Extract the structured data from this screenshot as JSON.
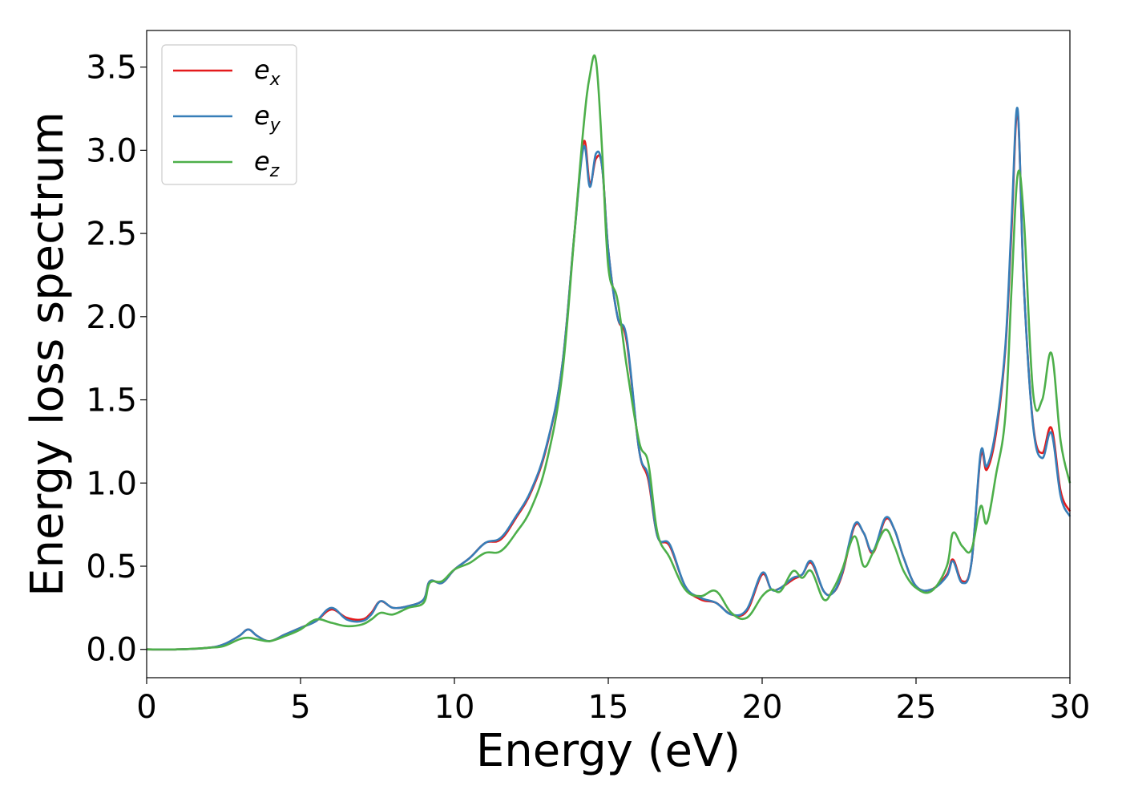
{
  "chart_data": {
    "type": "line",
    "xlabel": "Energy (eV)",
    "ylabel": "Energy loss spectrum",
    "xlim": [
      0,
      30
    ],
    "ylim": [
      -0.17,
      3.72
    ],
    "xticks": [
      0,
      5,
      10,
      15,
      20,
      25,
      30
    ],
    "xtick_labels": [
      "0",
      "5",
      "10",
      "15",
      "20",
      "25",
      "30"
    ],
    "yticks": [
      0.0,
      0.5,
      1.0,
      1.5,
      2.0,
      2.5,
      3.0,
      3.5
    ],
    "ytick_labels": [
      "0.0",
      "0.5",
      "1.0",
      "1.5",
      "2.0",
      "2.5",
      "3.0",
      "3.5"
    ],
    "grid": false,
    "legend_position": "top-left",
    "x": [
      0,
      1,
      2,
      2.5,
      3,
      3.3,
      3.6,
      4,
      4.5,
      5,
      5.5,
      6,
      6.5,
      7,
      7.3,
      7.6,
      8,
      8.5,
      9,
      9.2,
      9.6,
      10,
      10.5,
      11,
      11.5,
      12,
      12.5,
      13,
      13.5,
      13.9,
      14.2,
      14.4,
      14.6,
      14.8,
      15,
      15.3,
      15.6,
      16,
      16.3,
      16.6,
      17,
      17.5,
      18,
      18.5,
      19,
      19.5,
      20,
      20.3,
      20.6,
      21,
      21.3,
      21.6,
      22,
      22.3,
      22.6,
      23,
      23.3,
      23.6,
      24,
      24.3,
      24.6,
      25,
      25.5,
      26,
      26.2,
      26.5,
      26.8,
      27.1,
      27.3,
      27.6,
      27.9,
      28.1,
      28.3,
      28.5,
      28.8,
      29.1,
      29.4,
      29.7,
      30
    ],
    "series": [
      {
        "name": "x",
        "color": "#e41a1c",
        "values": [
          0,
          0,
          0.01,
          0.03,
          0.08,
          0.12,
          0.08,
          0.05,
          0.09,
          0.13,
          0.17,
          0.24,
          0.19,
          0.18,
          0.22,
          0.29,
          0.25,
          0.26,
          0.3,
          0.41,
          0.4,
          0.48,
          0.55,
          0.64,
          0.66,
          0.79,
          0.95,
          1.22,
          1.7,
          2.5,
          3.05,
          2.8,
          2.95,
          2.9,
          2.4,
          2.0,
          1.85,
          1.2,
          1.02,
          0.68,
          0.62,
          0.38,
          0.3,
          0.28,
          0.21,
          0.23,
          0.45,
          0.36,
          0.37,
          0.42,
          0.45,
          0.52,
          0.35,
          0.34,
          0.45,
          0.74,
          0.7,
          0.58,
          0.78,
          0.72,
          0.55,
          0.38,
          0.36,
          0.45,
          0.54,
          0.41,
          0.52,
          1.16,
          1.08,
          1.3,
          1.8,
          2.5,
          3.23,
          2.2,
          1.36,
          1.18,
          1.33,
          0.95,
          0.83
        ]
      },
      {
        "name": "y",
        "color": "#377eb8",
        "values": [
          0,
          0,
          0.01,
          0.03,
          0.08,
          0.12,
          0.08,
          0.05,
          0.09,
          0.13,
          0.17,
          0.25,
          0.18,
          0.17,
          0.21,
          0.29,
          0.25,
          0.26,
          0.3,
          0.41,
          0.4,
          0.48,
          0.55,
          0.64,
          0.67,
          0.8,
          0.96,
          1.23,
          1.7,
          2.5,
          3.02,
          2.78,
          2.98,
          2.9,
          2.4,
          2.0,
          1.87,
          1.2,
          1.04,
          0.68,
          0.63,
          0.38,
          0.31,
          0.28,
          0.21,
          0.24,
          0.46,
          0.36,
          0.37,
          0.43,
          0.45,
          0.53,
          0.35,
          0.34,
          0.46,
          0.75,
          0.7,
          0.59,
          0.79,
          0.72,
          0.55,
          0.38,
          0.36,
          0.44,
          0.53,
          0.4,
          0.52,
          1.18,
          1.1,
          1.33,
          1.82,
          2.55,
          3.25,
          2.2,
          1.35,
          1.15,
          1.3,
          0.92,
          0.8
        ]
      },
      {
        "name": "z",
        "color": "#4daf4a",
        "values": [
          0,
          0,
          0.01,
          0.02,
          0.06,
          0.07,
          0.06,
          0.05,
          0.08,
          0.12,
          0.18,
          0.16,
          0.14,
          0.15,
          0.18,
          0.22,
          0.21,
          0.25,
          0.28,
          0.4,
          0.41,
          0.48,
          0.52,
          0.58,
          0.59,
          0.7,
          0.85,
          1.13,
          1.65,
          2.5,
          3.15,
          3.45,
          3.54,
          3.0,
          2.3,
          2.1,
          1.7,
          1.25,
          1.12,
          0.7,
          0.55,
          0.36,
          0.32,
          0.35,
          0.22,
          0.19,
          0.32,
          0.36,
          0.35,
          0.47,
          0.43,
          0.47,
          0.3,
          0.36,
          0.48,
          0.68,
          0.5,
          0.58,
          0.72,
          0.62,
          0.47,
          0.37,
          0.35,
          0.5,
          0.7,
          0.62,
          0.6,
          0.86,
          0.76,
          1.05,
          1.4,
          2.15,
          2.85,
          2.6,
          1.55,
          1.5,
          1.78,
          1.25,
          1.0
        ]
      }
    ]
  },
  "legend": [
    {
      "base": "e",
      "sub": "x",
      "color": "#e41a1c"
    },
    {
      "base": "e",
      "sub": "y",
      "color": "#377eb8"
    },
    {
      "base": "e",
      "sub": "z",
      "color": "#4daf4a"
    }
  ]
}
